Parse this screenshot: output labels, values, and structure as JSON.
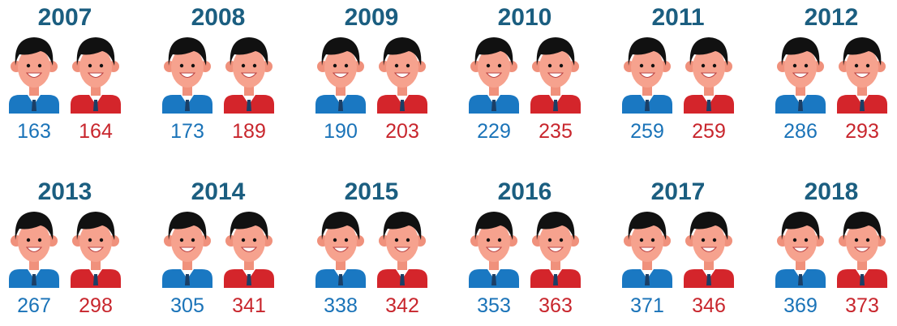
{
  "items": [
    {
      "year": "2007",
      "blue": 163,
      "red": 164
    },
    {
      "year": "2008",
      "blue": 173,
      "red": 189
    },
    {
      "year": "2009",
      "blue": 190,
      "red": 203
    },
    {
      "year": "2010",
      "blue": 229,
      "red": 235
    },
    {
      "year": "2011",
      "blue": 259,
      "red": 259
    },
    {
      "year": "2012",
      "blue": 286,
      "red": 293
    },
    {
      "year": "2013",
      "blue": 267,
      "red": 298
    },
    {
      "year": "2014",
      "blue": 305,
      "red": 341
    },
    {
      "year": "2015",
      "blue": 338,
      "red": 342
    },
    {
      "year": "2016",
      "blue": 353,
      "red": 363
    },
    {
      "year": "2017",
      "blue": 371,
      "red": 346
    },
    {
      "year": "2018",
      "blue": 369,
      "red": 373
    }
  ]
}
